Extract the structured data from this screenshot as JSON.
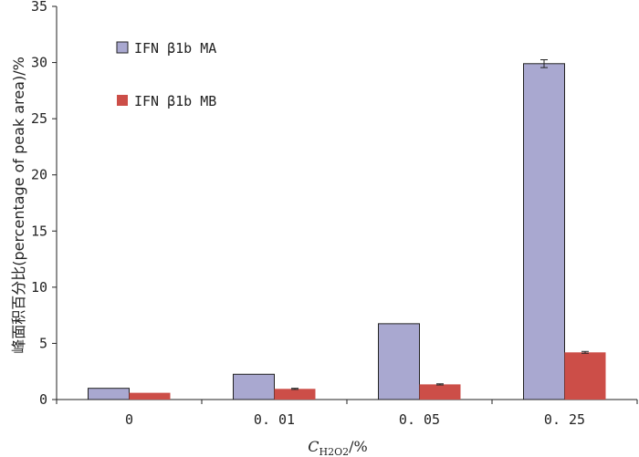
{
  "chart_data": {
    "type": "bar",
    "ylabel": "峰面积百分比(percentage of peak area)/%",
    "xlabel": {
      "symbol": "C",
      "subscript": "H2O2",
      "unit": "/%"
    },
    "categories": [
      "0",
      "0.01",
      "0.05",
      "0.25"
    ],
    "series": [
      {
        "name": "IFN β1b MA",
        "color": "#a9a8d0",
        "values": [
          1.0,
          2.25,
          6.75,
          29.9
        ],
        "errors": [
          0.0,
          0.0,
          0.0,
          0.35
        ]
      },
      {
        "name": "IFN β1b MB",
        "color": "#cc4e48",
        "values": [
          0.6,
          0.95,
          1.35,
          4.2
        ],
        "errors": [
          0.0,
          0.05,
          0.05,
          0.08
        ]
      }
    ],
    "ylim": [
      0,
      35
    ],
    "yticks": [
      "0",
      "5",
      "10",
      "15",
      "20",
      "25",
      "30",
      "35"
    ],
    "xtick_labels": [
      "0",
      "0. 01",
      "0. 05",
      "0. 25"
    ],
    "grid": false,
    "legend_position": "top-left"
  }
}
